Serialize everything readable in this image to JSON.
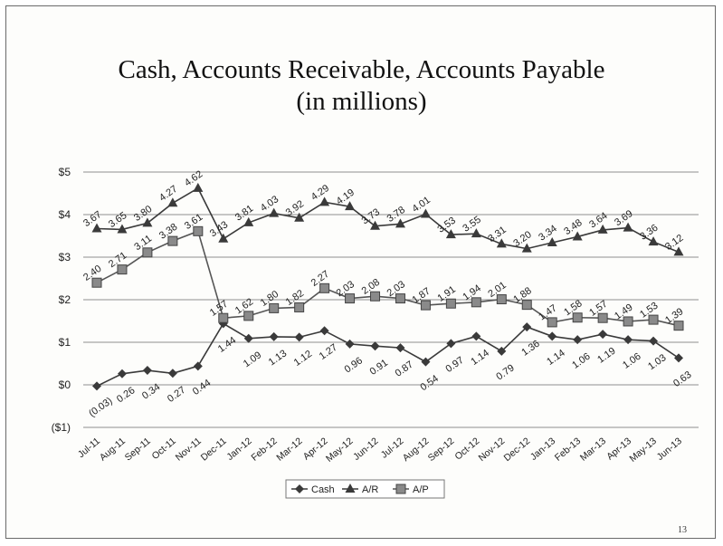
{
  "page": {
    "number": "13"
  },
  "chart_data": {
    "type": "line",
    "title": "Cash, Accounts Receivable, Accounts Payable",
    "subtitle": "(in millions)",
    "xlabel": "",
    "ylabel": "",
    "ylim": [
      -1,
      5
    ],
    "yticks": [
      "($1)",
      "$0",
      "$1",
      "$2",
      "$3",
      "$4",
      "$5"
    ],
    "grid": true,
    "legend_position": "bottom",
    "categories": [
      "Jul-11",
      "Aug-11",
      "Sep-11",
      "Oct-11",
      "Nov-11",
      "Dec-11",
      "Jan-12",
      "Feb-12",
      "Mar-12",
      "Apr-12",
      "May-12",
      "Jun-12",
      "Jul-12",
      "Aug-12",
      "Sep-12",
      "Oct-12",
      "Nov-12",
      "Dec-12",
      "Jan-13",
      "Feb-13",
      "Mar-13",
      "Apr-13",
      "May-13",
      "Jun-13"
    ],
    "series": [
      {
        "name": "Cash",
        "marker": "diamond",
        "color": "#3a3a3a",
        "values": [
          -0.03,
          0.26,
          0.34,
          0.27,
          0.44,
          1.44,
          1.09,
          1.13,
          1.12,
          1.27,
          0.96,
          0.91,
          0.87,
          0.54,
          0.97,
          1.14,
          0.79,
          1.36,
          1.14,
          1.06,
          1.19,
          1.06,
          1.03,
          0.63
        ],
        "labels": [
          "(0.03)",
          "0.26",
          "0.34",
          "0.27",
          "0.44",
          "1.44",
          "1.09",
          "1.13",
          "1.12",
          "1.27",
          "0.96",
          "0.91",
          "0.87",
          "0.54",
          "0.97",
          "1.14",
          "0.79",
          "1.36",
          "1.14",
          "1.06",
          "1.19",
          "1.06",
          "1.03",
          "0.63"
        ]
      },
      {
        "name": "A/R",
        "marker": "triangle",
        "color": "#3a3a3a",
        "values": [
          3.67,
          3.65,
          3.8,
          4.27,
          4.62,
          3.43,
          3.81,
          4.03,
          3.92,
          4.29,
          4.19,
          3.73,
          3.78,
          4.01,
          3.53,
          3.55,
          3.31,
          3.2,
          3.34,
          3.48,
          3.64,
          3.69,
          3.36,
          3.12
        ],
        "labels": [
          "3.67",
          "3.65",
          "3.80",
          "4.27",
          "4.62",
          "3.43",
          "3.81",
          "4.03",
          "3.92",
          "4.29",
          "4.19",
          "3.73",
          "3.78",
          "4.01",
          "3.53",
          "3.55",
          "3.31",
          "3.20",
          "3.34",
          "3.48",
          "3.64",
          "3.69",
          "3.36",
          "3.12"
        ]
      },
      {
        "name": "A/P",
        "marker": "square",
        "color": "#555555",
        "values": [
          2.4,
          2.71,
          3.11,
          3.38,
          3.61,
          1.57,
          1.62,
          1.8,
          1.82,
          2.27,
          2.03,
          2.08,
          2.03,
          1.87,
          1.91,
          1.94,
          2.01,
          1.88,
          1.47,
          1.58,
          1.57,
          1.49,
          1.53,
          1.39
        ],
        "labels": [
          "2.40",
          "2.71",
          "3.11",
          "3.38",
          "3.61",
          "1.57",
          "1.62",
          "1.80",
          "1.82",
          "2.27",
          "2.03",
          "2.08",
          "2.03",
          "1.87",
          "1.91",
          "1.94",
          "2.01",
          "1.88",
          "1.47",
          "1.58",
          "1.57",
          "1.49",
          "1.53",
          "1.39"
        ]
      }
    ]
  }
}
